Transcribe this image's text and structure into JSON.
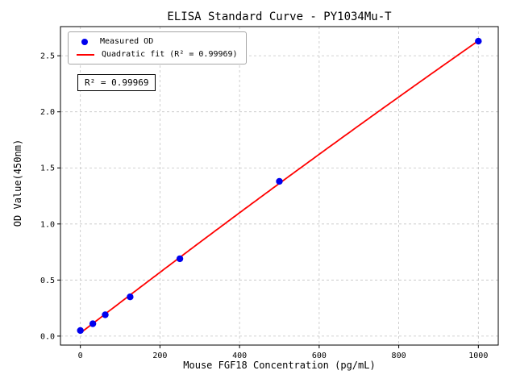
{
  "chart_data": {
    "type": "scatter",
    "title": "ELISA Standard Curve - PY1034Mu-T",
    "xlabel": "Mouse FGF18 Concentration (pg/mL)",
    "ylabel": "OD Value(450nm)",
    "xlim": [
      -50,
      1050
    ],
    "ylim": [
      -0.08,
      2.76
    ],
    "xticks": [
      0,
      200,
      400,
      600,
      800,
      1000
    ],
    "xtick_labels": [
      "0",
      "200",
      "400",
      "600",
      "800",
      "1000"
    ],
    "yticks": [
      0,
      0.5,
      1,
      1.5,
      2,
      2.5
    ],
    "ytick_labels": [
      "0.0",
      "0.5",
      "1.0",
      "1.5",
      "2.0",
      "2.5"
    ],
    "grid": true,
    "grid_style": "dashed",
    "legend_position": "upper left",
    "series": [
      {
        "name": "Measured OD",
        "type": "scatter",
        "color": "#0000ee",
        "x": [
          0,
          31.25,
          62.5,
          125,
          250,
          500,
          1000
        ],
        "y": [
          0.05,
          0.11,
          0.19,
          0.35,
          0.69,
          1.38,
          2.63
        ]
      },
      {
        "name": "Quadratic fit (R² = 0.99969)",
        "type": "quadratic-fit-line",
        "color": "#ff0000",
        "fit_of": "Measured OD",
        "r_squared": 0.99969
      }
    ],
    "annotations": [
      {
        "text": "R² = 0.99969",
        "position": "below-legend"
      }
    ]
  }
}
